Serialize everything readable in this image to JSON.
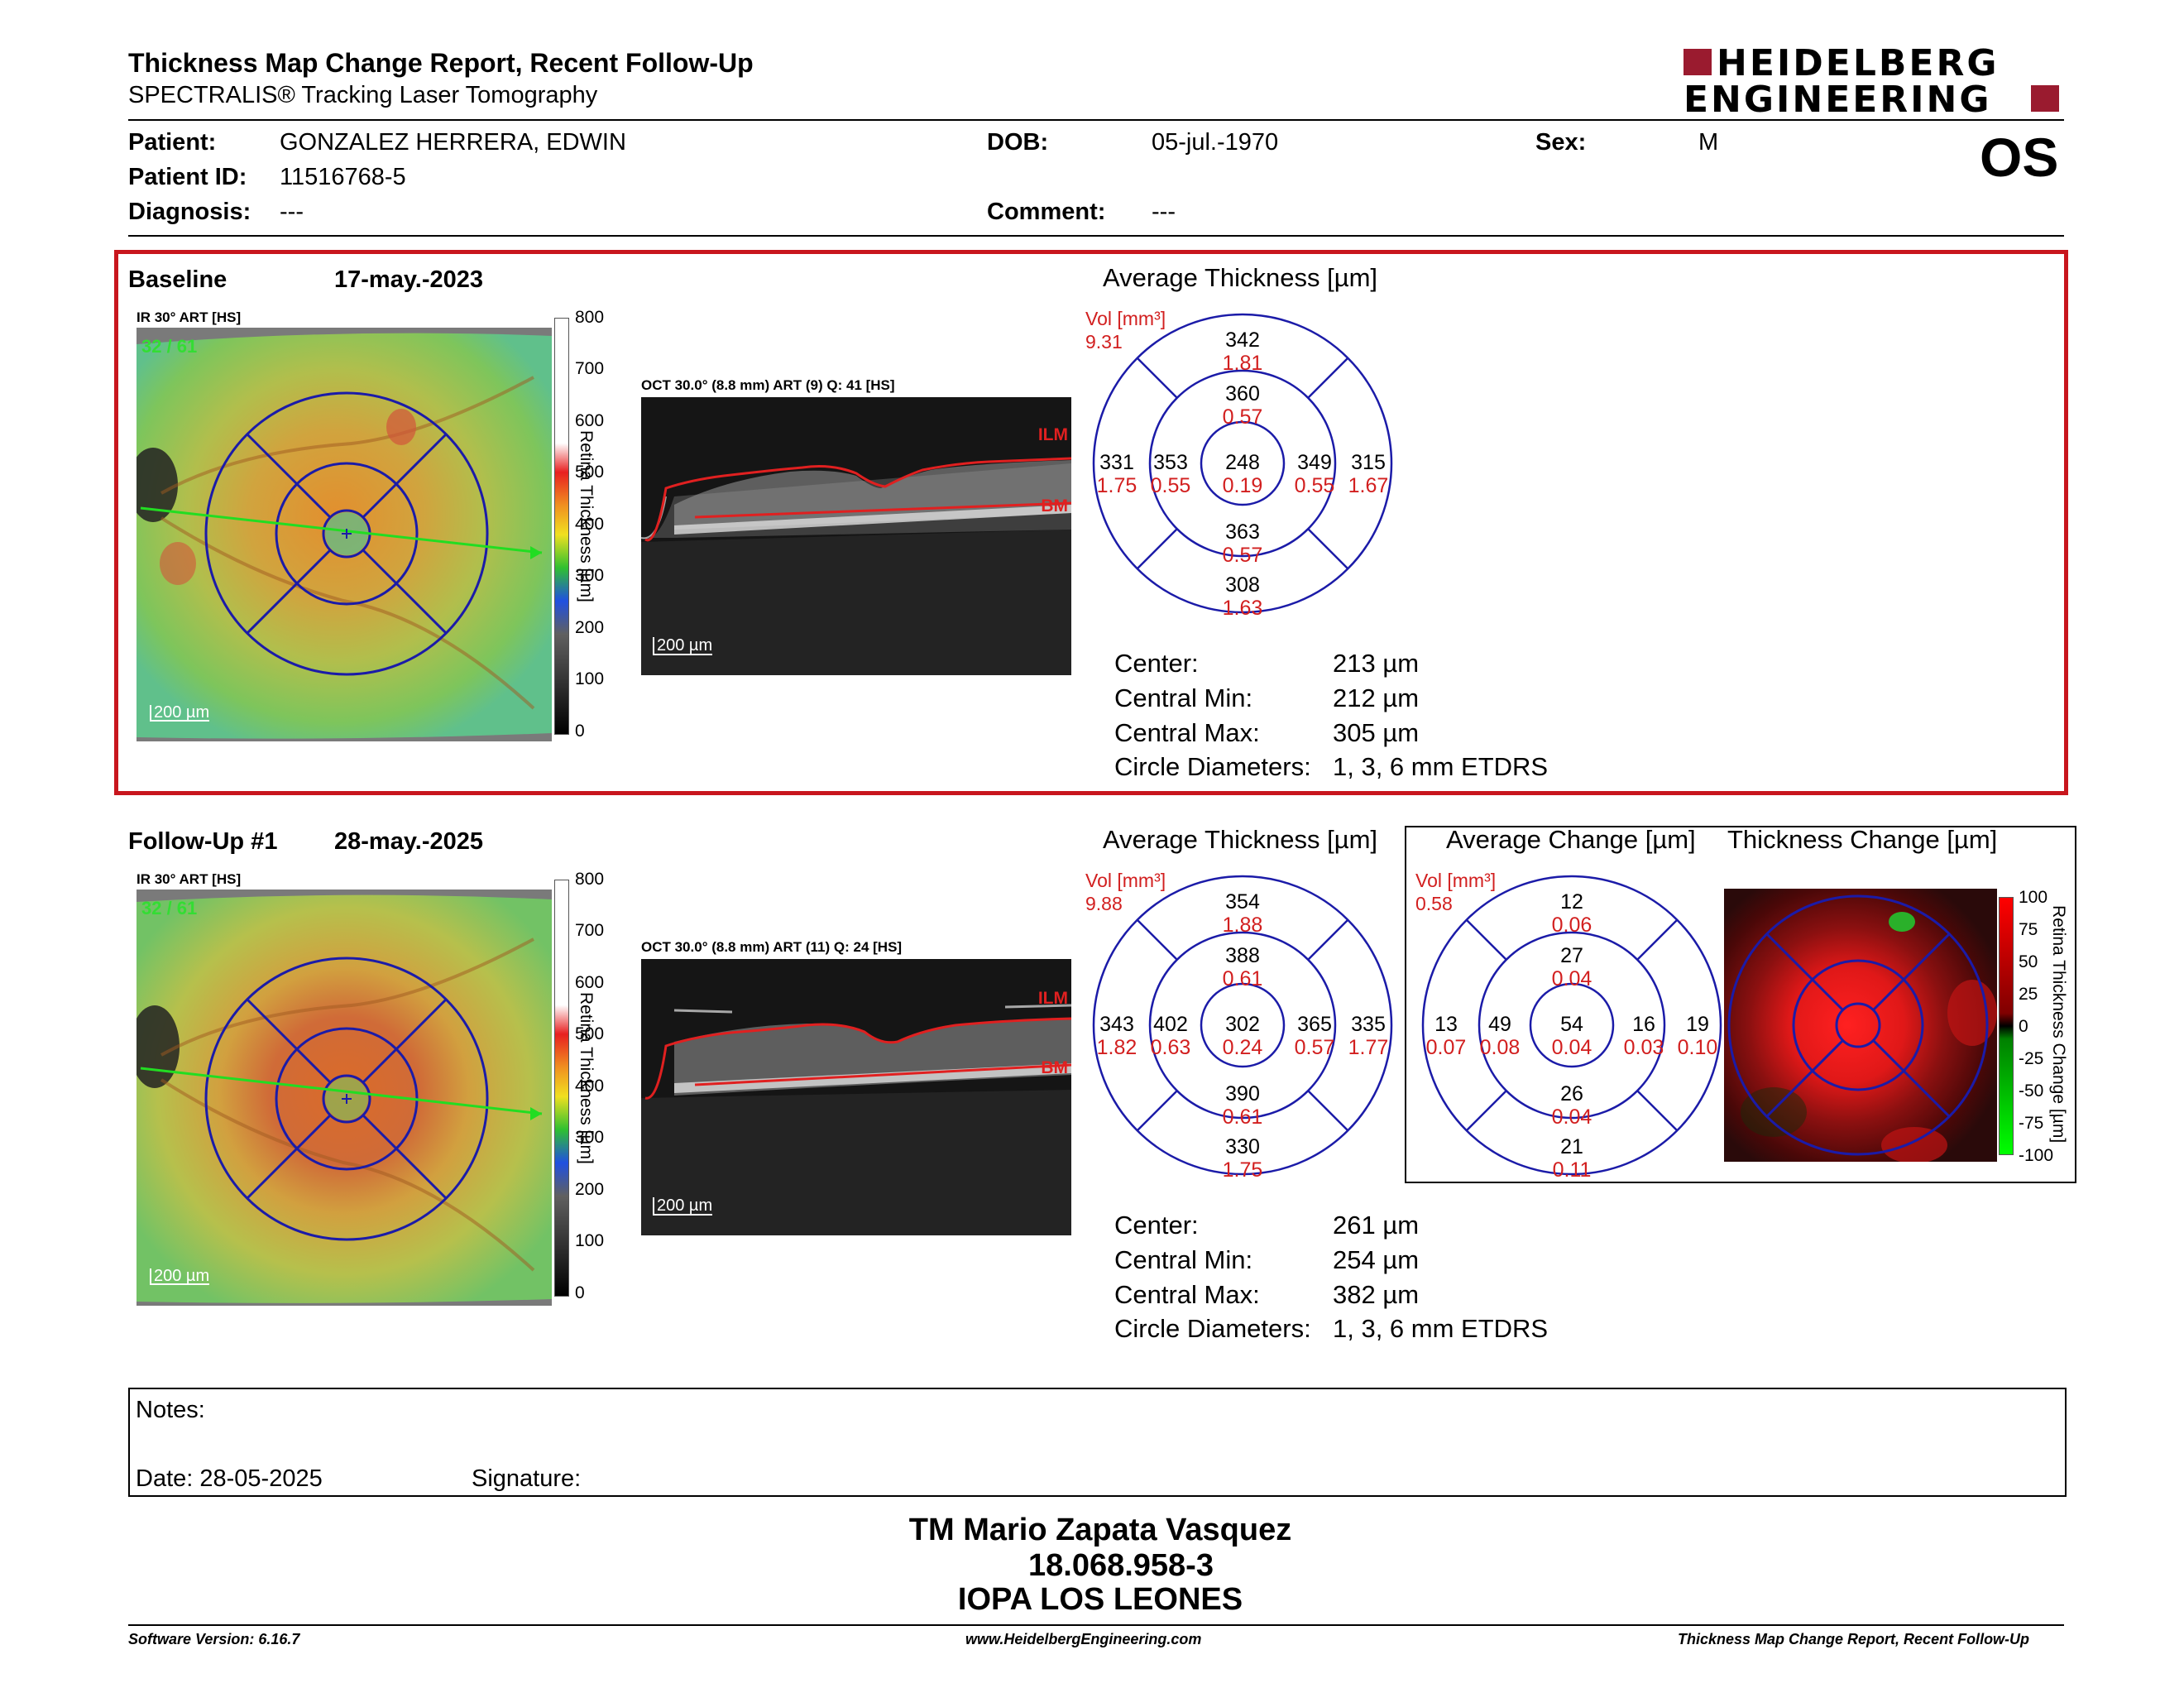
{
  "header": {
    "title": "Thickness Map Change Report, Recent Follow-Up",
    "subtitle": "SPECTRALIS® Tracking Laser Tomography",
    "logo_line1": "HEIDELBERG",
    "logo_line2": "ENGINEERING",
    "eye": "OS",
    "colors": {
      "logo": "#9a1b2f",
      "baseline_border": "#c8161d",
      "grid": "#1b1ba8",
      "vol": "#d21f1f"
    }
  },
  "patient": {
    "patient_label": "Patient:",
    "patient_value": "GONZALEZ HERRERA, EDWIN",
    "id_label": "Patient ID:",
    "id_value": "11516768-5",
    "diag_label": "Diagnosis:",
    "diag_value": "---",
    "dob_label": "DOB:",
    "dob_value": "05-jul.-1970",
    "comment_label": "Comment:",
    "comment_value": "---",
    "sex_label": "Sex:",
    "sex_value": "M"
  },
  "baseline": {
    "label": "Baseline",
    "date": "17-may.-2023",
    "ir_label": "IR 30° ART [HS]",
    "ir_overlay": "32 / 61",
    "scale": "200 µm",
    "oct_label": "OCT 30.0° (8.8 mm) ART (9) Q: 41 [HS]",
    "oct_scale": "200 µm",
    "ilm": "ILM",
    "bm": "BM",
    "colorbar_title": "Retina Thickness [µm]",
    "colorbar_ticks": [
      "800",
      "700",
      "600",
      "500",
      "400",
      "300",
      "200",
      "100",
      "0"
    ],
    "avg_title": "Average Thickness [µm]",
    "vol_label": "Vol [mm³]",
    "vol_total": "9.31",
    "sectors": {
      "center": {
        "t": "248",
        "v": "0.19"
      },
      "inner_sup": {
        "t": "360",
        "v": "0.57"
      },
      "inner_inf": {
        "t": "363",
        "v": "0.57"
      },
      "inner_left": {
        "t": "353",
        "v": "0.55"
      },
      "inner_right": {
        "t": "349",
        "v": "0.55"
      },
      "outer_sup": {
        "t": "342",
        "v": "1.81"
      },
      "outer_inf": {
        "t": "308",
        "v": "1.63"
      },
      "outer_left": {
        "t": "331",
        "v": "1.75"
      },
      "outer_right": {
        "t": "315",
        "v": "1.67"
      }
    },
    "stats": [
      {
        "label": "Center:",
        "value": "213 µm"
      },
      {
        "label": "Central Min:",
        "value": "212 µm"
      },
      {
        "label": "Central Max:",
        "value": "305 µm"
      },
      {
        "label": "Circle Diameters:",
        "value": "1, 3, 6 mm ETDRS"
      }
    ]
  },
  "followup": {
    "label": "Follow-Up #1",
    "date": "28-may.-2025",
    "ir_label": "IR 30° ART [HS]",
    "ir_overlay": "32 / 61",
    "scale": "200 µm",
    "oct_label": "OCT 30.0° (8.8 mm) ART (11) Q: 24 [HS]",
    "oct_scale": "200 µm",
    "ilm": "ILM",
    "bm": "BM",
    "colorbar_title": "Retina Thickness [µm]",
    "colorbar_ticks": [
      "800",
      "700",
      "600",
      "500",
      "400",
      "300",
      "200",
      "100",
      "0"
    ],
    "avg_title": "Average Thickness [µm]",
    "vol_label": "Vol [mm³]",
    "vol_total": "9.88",
    "sectors": {
      "center": {
        "t": "302",
        "v": "0.24"
      },
      "inner_sup": {
        "t": "388",
        "v": "0.61"
      },
      "inner_inf": {
        "t": "390",
        "v": "0.61"
      },
      "inner_left": {
        "t": "402",
        "v": "0.63"
      },
      "inner_right": {
        "t": "365",
        "v": "0.57"
      },
      "outer_sup": {
        "t": "354",
        "v": "1.88"
      },
      "outer_inf": {
        "t": "330",
        "v": "1.75"
      },
      "outer_left": {
        "t": "343",
        "v": "1.82"
      },
      "outer_right": {
        "t": "335",
        "v": "1.77"
      }
    },
    "stats": [
      {
        "label": "Center:",
        "value": "261 µm"
      },
      {
        "label": "Central Min:",
        "value": "254 µm"
      },
      {
        "label": "Central Max:",
        "value": "382 µm"
      },
      {
        "label": "Circle Diameters:",
        "value": "1, 3, 6 mm ETDRS"
      }
    ]
  },
  "change": {
    "avg_title": "Average Change [µm]",
    "map_title": "Thickness Change [µm]",
    "vol_label": "Vol [mm³]",
    "vol_total": "0.58",
    "colorbar_title": "Retina Thickness Change [µm]",
    "colorbar_ticks": [
      "100",
      "75",
      "50",
      "25",
      "0",
      "-25",
      "-50",
      "-75",
      "-100"
    ],
    "sectors": {
      "center": {
        "t": "54",
        "v": "0.04"
      },
      "inner_sup": {
        "t": "27",
        "v": "0.04"
      },
      "inner_inf": {
        "t": "26",
        "v": "0.04"
      },
      "inner_left": {
        "t": "49",
        "v": "0.08"
      },
      "inner_right": {
        "t": "16",
        "v": "0.03"
      },
      "outer_sup": {
        "t": "12",
        "v": "0.06"
      },
      "outer_inf": {
        "t": "21",
        "v": "0.11"
      },
      "outer_left": {
        "t": "13",
        "v": "0.07"
      },
      "outer_right": {
        "t": "19",
        "v": "0.10"
      }
    }
  },
  "notes": {
    "notes_label": "Notes:",
    "date_label": "Date: 28-05-2025",
    "signature_label": "Signature:"
  },
  "stamp": {
    "line1": "TM Mario Zapata Vasquez",
    "line2": "18.068.958-3",
    "line3": "IOPA LOS LEONES"
  },
  "footer": {
    "left": "Software Version: 6.16.7",
    "center": "www.HeidelbergEngineering.com",
    "right": "Thickness Map Change Report, Recent Follow-Up"
  }
}
